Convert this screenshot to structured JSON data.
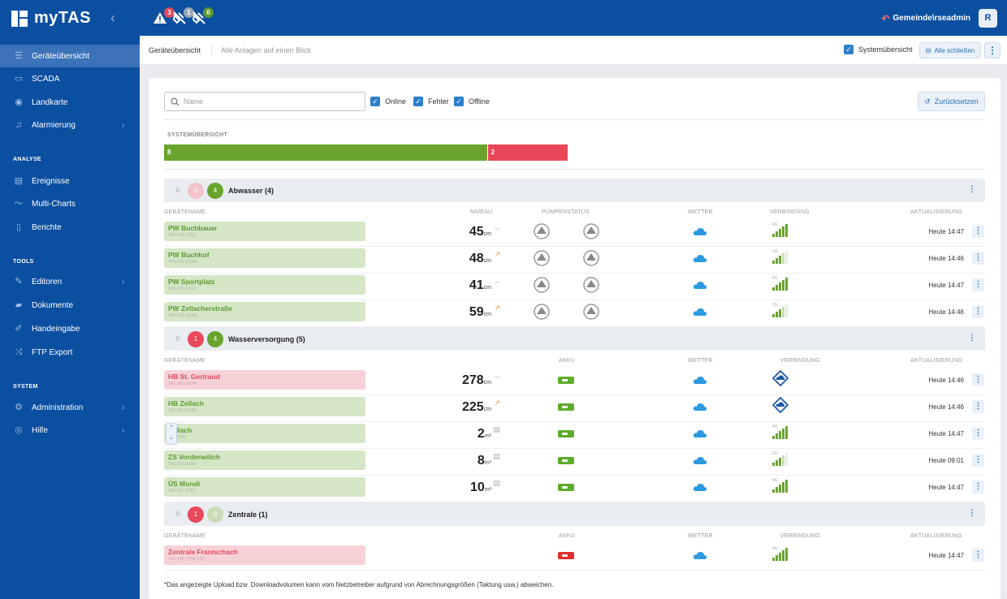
{
  "app": {
    "title": "myTAS",
    "collapse_icon": "chevron-left-icon"
  },
  "alerts": [
    {
      "icon": "warning-icon",
      "count": "3",
      "badge_color": "#e0495c"
    },
    {
      "icon": "satellite-off-icon",
      "count": "1",
      "badge_color": "#9aa6b3"
    },
    {
      "icon": "satellite-off-icon",
      "count": "0",
      "badge_color": "#5d9831"
    }
  ],
  "user": {
    "label": "Gemeinde\\rseadmin",
    "initial": "R"
  },
  "sidebar": {
    "items": [
      {
        "label": "Geräteübersicht",
        "icon": "list-icon"
      },
      {
        "label": "SCADA",
        "icon": "monitor-icon"
      },
      {
        "label": "Landkarte",
        "icon": "map-pin-icon"
      },
      {
        "label": "Alarmierung",
        "icon": "bell-icon"
      }
    ],
    "analyse_title": "ANALYSE",
    "analyse": [
      {
        "label": "Ereignisse",
        "icon": "table-icon"
      },
      {
        "label": "Multi-Charts",
        "icon": "chart-line-icon"
      },
      {
        "label": "Berichte",
        "icon": "file-icon"
      }
    ],
    "tools_title": "TOOLS",
    "tools": [
      {
        "label": "Editoren",
        "icon": "edit-icon"
      },
      {
        "label": "Dokumente",
        "icon": "folder-icon"
      },
      {
        "label": "Handeingabe",
        "icon": "pencil-icon"
      },
      {
        "label": "FTP Export",
        "icon": "shuffle-icon"
      }
    ],
    "system_title": "SYSTEM",
    "system": [
      {
        "label": "Administration",
        "icon": "gear-icon"
      },
      {
        "label": "Hilfe",
        "icon": "help-icon"
      }
    ]
  },
  "header": {
    "title": "Geräteübersicht",
    "subtitle": "Alle Anlagen auf einen Blick",
    "systemuebersicht": "Systemübersicht",
    "alle_schliessen": "Alle schließen"
  },
  "filters": {
    "search_placeholder": "Name",
    "online": "Online",
    "fehler": "Fehler",
    "offline": "Offline",
    "reset": "Zurücksetzen"
  },
  "system_overview": {
    "label": "SYSTEMÜBERSICHT",
    "ok": "8",
    "err": "2",
    "ok_fraction": 0.8
  },
  "columns": {
    "geraetename": "GERÄTENAME",
    "niveau": "NIVEAU",
    "pumpenstatus": "PUMPENSTATUS",
    "wetter": "WETTER",
    "verbindung": "VERBINDUNG",
    "aktualisierung": "AKTUALISIERUNG",
    "akku": "AKKU"
  },
  "groups": [
    {
      "name": "Abwasser (4)",
      "offline": "0",
      "error": "0",
      "online": "4"
    },
    {
      "name": "Wasserversorgung (5)",
      "offline": "0",
      "error": "1",
      "online": "4"
    },
    {
      "name": "Zentrale (1)",
      "offline": "0",
      "error": "1",
      "online": "0"
    }
  ],
  "devices": [
    {
      "name": "PW Buchbauer",
      "sub": "TAS X31 (LTE)",
      "value": "45",
      "unit": "cm",
      "trend": "→",
      "net": "4G",
      "updated": "Heute 14:47",
      "status": "ok"
    },
    {
      "name": "PW Buchhof",
      "sub": "TAS X31 (GSM)",
      "value": "48",
      "unit": "cm",
      "trend": "↗",
      "net": "2G",
      "updated": "Heute 14:46",
      "status": "ok"
    },
    {
      "name": "PW Sportplatz",
      "sub": "TAS X31 (LTE)",
      "value": "41",
      "unit": "cm",
      "trend": "→",
      "net": "4G",
      "updated": "Heute 14:47",
      "status": "ok"
    },
    {
      "name": "PW Zellacherstraße",
      "sub": "TAS X31 (GSM)",
      "value": "59",
      "unit": "cm",
      "trend": "↗",
      "net": "2G",
      "updated": "Heute 14:46",
      "status": "ok"
    },
    {
      "name": "HB St. Gertraud",
      "sub": "TAS 300 (GSM)",
      "value": "278",
      "unit": "cm",
      "trend": "→",
      "net": "",
      "updated": "Heute 14:46",
      "status": "err"
    },
    {
      "name": "HB Zellach",
      "sub": "TAS 300 (GSM)",
      "value": "225",
      "unit": "cm",
      "trend": "↗",
      "net": "",
      "updated": "Heute 14:46",
      "status": "ok"
    },
    {
      "name": "Zellach",
      "sub": "X31 (LTE)",
      "value": "2",
      "unit": "m³",
      "trend": "",
      "net": "4G",
      "updated": "Heute 14:47",
      "status": "ok"
    },
    {
      "name": "ZS Vorderwölch",
      "sub": "TAS X11 (GSM)",
      "value": "8",
      "unit": "m³",
      "trend": "",
      "net": "2G",
      "updated": "Heute 09:01",
      "status": "ok"
    },
    {
      "name": "ÜS Mondi",
      "sub": "TAS X11 (LTE)",
      "value": "10",
      "unit": "m³",
      "trend": "",
      "net": "4G",
      "updated": "Heute 14:47",
      "status": "ok"
    },
    {
      "name": "Zentrale Frantschach",
      "sub": "TAS X40 (VDIP LTE)",
      "value": "",
      "unit": "",
      "trend": "",
      "net": "4G",
      "updated": "Heute 14:47",
      "status": "err"
    }
  ],
  "footnote": "*Das angezeigte Upload bzw. Downloadvolumen kann vom Netzbetreiber aufgrund von Abrechnungsgrößen (Taktung usw.) abweichen.",
  "colors": {
    "primary": "#0b4fa1",
    "ok": "#6aa42f",
    "error": "#e8485a",
    "weather": "#2b9ae0"
  }
}
